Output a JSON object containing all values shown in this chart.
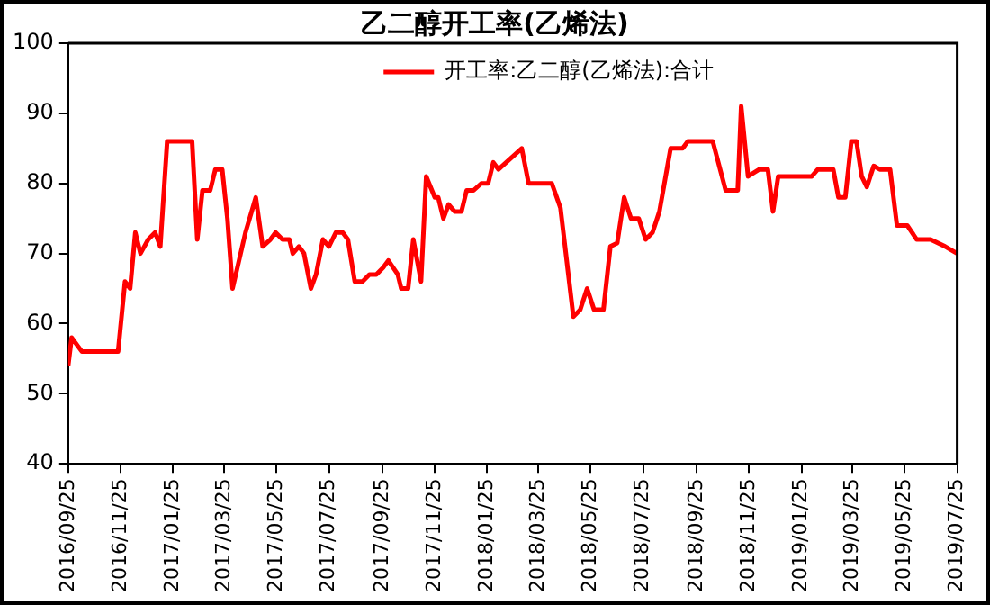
{
  "chart_data": {
    "type": "line",
    "title": "乙二醇开工率(乙烯法)",
    "x": [
      "2016-09-25",
      "2016-09-29",
      "2016-10-11",
      "2016-11-22",
      "2016-11-30",
      "2016-12-06",
      "2016-12-12",
      "2016-12-18",
      "2016-12-27",
      "2017-01-04",
      "2017-01-10",
      "2017-01-18",
      "2017-02-16",
      "2017-02-22",
      "2017-02-28",
      "2017-03-09",
      "2017-03-15",
      "2017-03-23",
      "2017-03-29",
      "2017-04-04",
      "2017-04-19",
      "2017-05-01",
      "2017-05-09",
      "2017-05-18",
      "2017-05-24",
      "2017-06-01",
      "2017-06-09",
      "2017-06-13",
      "2017-06-20",
      "2017-06-26",
      "2017-07-04",
      "2017-07-10",
      "2017-07-18",
      "2017-07-25",
      "2017-08-02",
      "2017-08-10",
      "2017-08-16",
      "2017-08-24",
      "2017-09-02",
      "2017-09-10",
      "2017-09-18",
      "2017-09-26",
      "2017-10-02",
      "2017-10-13",
      "2017-10-17",
      "2017-10-25",
      "2017-10-31",
      "2017-11-09",
      "2017-11-15",
      "2017-11-25",
      "2017-11-29",
      "2017-12-05",
      "2017-12-11",
      "2017-12-18",
      "2017-12-26",
      "2018-01-01",
      "2018-01-09",
      "2018-01-18",
      "2018-01-26",
      "2018-02-01",
      "2018-02-07",
      "2018-03-06",
      "2018-03-14",
      "2018-04-10",
      "2018-04-20",
      "2018-05-05",
      "2018-05-13",
      "2018-05-21",
      "2018-05-29",
      "2018-06-09",
      "2018-06-17",
      "2018-06-25",
      "2018-07-03",
      "2018-07-11",
      "2018-07-20",
      "2018-07-28",
      "2018-08-05",
      "2018-08-13",
      "2018-08-26",
      "2018-09-09",
      "2018-09-15",
      "2018-10-14",
      "2018-10-29",
      "2018-11-12",
      "2018-11-16",
      "2018-11-24",
      "2018-12-07",
      "2018-12-17",
      "2018-12-23",
      "2018-12-29",
      "2019-02-06",
      "2019-02-13",
      "2019-03-03",
      "2019-03-09",
      "2019-03-17",
      "2019-03-24",
      "2019-03-30",
      "2019-04-05",
      "2019-04-11",
      "2019-04-19",
      "2019-04-26",
      "2019-05-08",
      "2019-05-16",
      "2019-05-28",
      "2019-06-08",
      "2019-06-24",
      "2019-07-11",
      "2019-07-25"
    ],
    "series": [
      {
        "name": "开工率:乙二醇(乙烯法):合计",
        "color": "#ff0000",
        "values": [
          54,
          58,
          56,
          56,
          66,
          65,
          73,
          70,
          72,
          73,
          71,
          86,
          86,
          72,
          79,
          79,
          82,
          82,
          75,
          65,
          73,
          78,
          71,
          72,
          73,
          72,
          72,
          70,
          71,
          70,
          65,
          67,
          72,
          71,
          73,
          73,
          72,
          66,
          66,
          67,
          67,
          68,
          69,
          67,
          65,
          65,
          72,
          66,
          81,
          78,
          78,
          75,
          77,
          76,
          76,
          79,
          79,
          80,
          80,
          83,
          82,
          85,
          80,
          80,
          76.5,
          61,
          62,
          65,
          62,
          62,
          71,
          71.5,
          78,
          75,
          75,
          72,
          73,
          76,
          85,
          85,
          86,
          86,
          79,
          79,
          91,
          81,
          82,
          82,
          76,
          81,
          81,
          82,
          82,
          78,
          78,
          86,
          86,
          81,
          79.5,
          82.5,
          82,
          82,
          74,
          74,
          72,
          72,
          71,
          70
        ]
      }
    ],
    "xlim": [
      "2016-09-25",
      "2019-07-25"
    ],
    "xticks": [
      {
        "value": "2016-09-25",
        "label": "2016/09/25"
      },
      {
        "value": "2016-11-25",
        "label": "2016/11/25"
      },
      {
        "value": "2017-01-25",
        "label": "2017/01/25"
      },
      {
        "value": "2017-03-25",
        "label": "2017/03/25"
      },
      {
        "value": "2017-05-25",
        "label": "2017/05/25"
      },
      {
        "value": "2017-07-25",
        "label": "2017/07/25"
      },
      {
        "value": "2017-09-25",
        "label": "2017/09/25"
      },
      {
        "value": "2017-11-25",
        "label": "2017/11/25"
      },
      {
        "value": "2018-01-25",
        "label": "2018/01/25"
      },
      {
        "value": "2018-03-25",
        "label": "2018/03/25"
      },
      {
        "value": "2018-05-25",
        "label": "2018/05/25"
      },
      {
        "value": "2018-07-25",
        "label": "2018/07/25"
      },
      {
        "value": "2018-09-25",
        "label": "2018/09/25"
      },
      {
        "value": "2018-11-25",
        "label": "2018/11/25"
      },
      {
        "value": "2019-01-25",
        "label": "2019/01/25"
      },
      {
        "value": "2019-03-25",
        "label": "2019/03/25"
      },
      {
        "value": "2019-05-25",
        "label": "2019/05/25"
      },
      {
        "value": "2019-07-25",
        "label": "2019/07/25"
      }
    ],
    "ylim": [
      40,
      100
    ],
    "yticks": [
      40,
      50,
      60,
      70,
      80,
      90,
      100
    ],
    "grid": false,
    "legend": "top",
    "marker": "none",
    "line_style": "solid"
  }
}
